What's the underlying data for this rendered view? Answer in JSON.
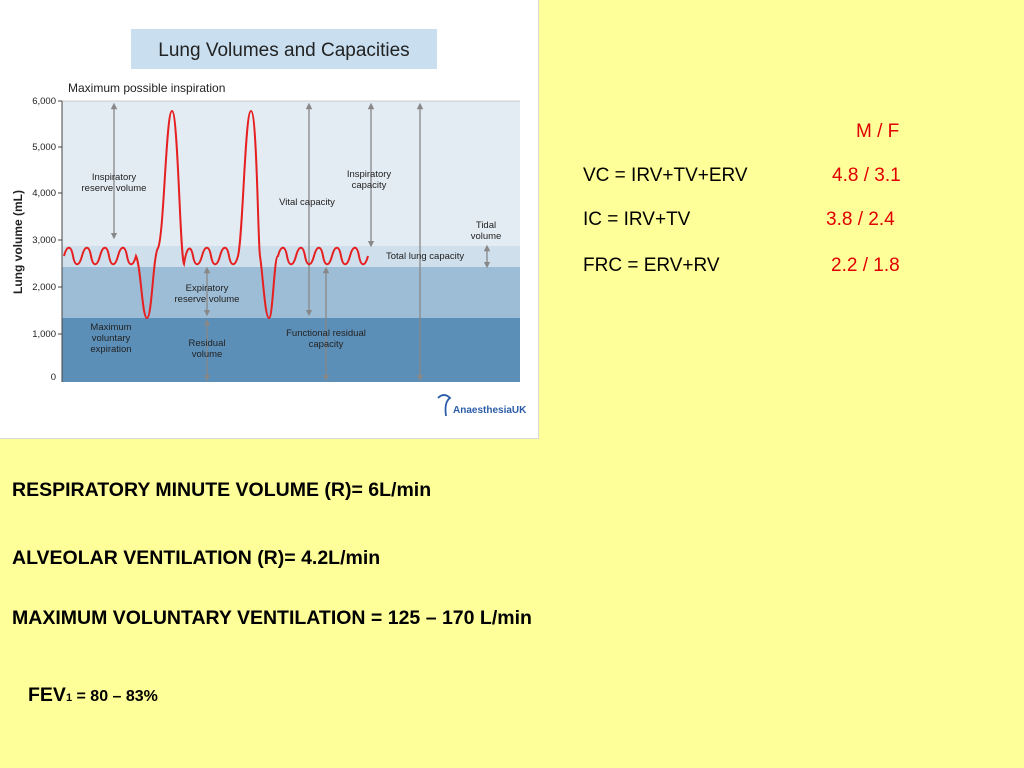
{
  "diagram": {
    "title": "Lung Volumes and Capacities",
    "y_axis_label": "Lung volume (mL)",
    "y_ticks": [
      "6,000",
      "5,000",
      "4,000",
      "3,000",
      "2,000",
      "1,000",
      "0"
    ],
    "labels": {
      "max_inspiration": "Maximum possible inspiration",
      "irv_1": "Inspiratory",
      "irv_2": "reserve volume",
      "vital_capacity": "Vital capacity",
      "ic_1": "Inspiratory",
      "ic_2": "capacity",
      "tidal_1": "Tidal",
      "tidal_2": "volume",
      "total_lung_capacity": "Total lung capacity",
      "erv_1": "Expiratory",
      "erv_2": "reserve volume",
      "mve_1": "Maximum",
      "mve_2": "voluntary",
      "mve_3": "expiration",
      "rv_1": "Residual",
      "rv_2": "volume",
      "frc_1": "Functional residual",
      "frc_2": "capacity"
    },
    "logo_text_1": "Anaesthesia",
    "logo_text_2": "UK",
    "colors": {
      "trace": "#e62020",
      "zone_top": "#e4ecf3",
      "zone_tidal": "#cfdfeb",
      "zone_mid": "#9dbdd6",
      "zone_low": "#5c8fb8"
    }
  },
  "values_table": {
    "header": "M / F",
    "rows": [
      {
        "formula": "VC = IRV+TV+ERV",
        "value": "4.8 / 3.1"
      },
      {
        "formula": "IC = IRV+TV",
        "value": "3.8 / 2.4"
      },
      {
        "formula": "FRC = ERV+RV",
        "value": "2.2 / 1.8"
      }
    ]
  },
  "facts": {
    "rmv": "RESPIRATORY MINUTE VOLUME (R)= 6L/min",
    "alveolar": "ALVEOLAR VENTILATION (R)= 4.2L/min",
    "mvv": "MAXIMUM VOLUNTARY VENTILATION = 125 – 170 L/min",
    "fev_prefix": "FEV",
    "fev_sub": "1",
    "fev_rest": " = 80 – 83%"
  }
}
